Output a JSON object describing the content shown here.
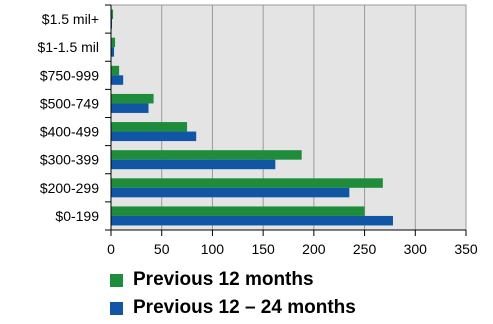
{
  "chart_data": {
    "type": "bar",
    "orientation": "horizontal",
    "categories": [
      "$1.5 mil+",
      "$1-1.5 mil",
      "$750-999",
      "$500-749",
      "$400-499",
      "$300-399",
      "$200-299",
      "$0-199"
    ],
    "series": [
      {
        "name": "Previous 12 months",
        "color": "#1e8c3a",
        "values": [
          2,
          4,
          8,
          42,
          75,
          188,
          268,
          250
        ]
      },
      {
        "name": "Previous 12 – 24 months",
        "color": "#1155a5",
        "values": [
          1,
          3,
          12,
          37,
          84,
          162,
          235,
          278
        ]
      }
    ],
    "xlim": [
      0,
      350
    ],
    "xticks": [
      "0",
      "50",
      "100",
      "150",
      "200",
      "250",
      "300",
      "350"
    ],
    "grid": true,
    "legend_position": "bottom",
    "plot_background": "#e4e4e4"
  }
}
